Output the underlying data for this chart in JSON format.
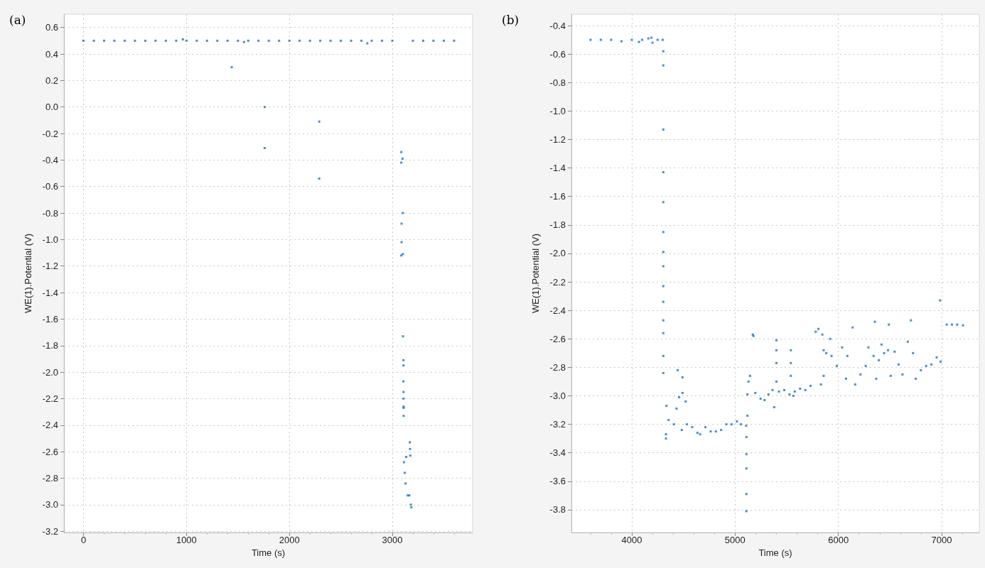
{
  "chart_data": [
    {
      "type": "scatter",
      "title": "(a)",
      "xlabel": "Time (s)",
      "ylabel": "WE(1).Potential (V)",
      "grid": true,
      "marker": "square",
      "xlim": [
        -190,
        3780
      ],
      "xticks": [
        0,
        1000,
        2000,
        3000
      ],
      "ylim": [
        -3.21,
        0.7
      ],
      "yticks": [
        0.6,
        0.4,
        0.2,
        {
          "value": 0,
          "label": "0.0"
        },
        -0.2,
        -0.4,
        -0.6,
        -0.8,
        {
          "value": -1,
          "label": "-1.0"
        },
        -1.2,
        -1.4,
        -1.6,
        -1.8,
        {
          "value": -2,
          "label": "-2.0"
        },
        -2.2,
        -2.4,
        -2.6,
        -2.8,
        {
          "value": -3,
          "label": "-3.0"
        },
        -3.2
      ],
      "series": [
        {
          "color": "#1a72c4",
          "x": [
            0,
            100,
            200,
            300,
            400,
            500,
            600,
            700,
            800,
            900,
            965,
            1000,
            1100,
            1200,
            1300,
            1400,
            1440,
            1500,
            1559,
            1600,
            1700,
            1760,
            1760,
            1800,
            1900,
            2000,
            2100,
            2200,
            2290,
            2290,
            2300,
            2400,
            2500,
            2600,
            2700,
            2757,
            2800,
            2900,
            3000,
            3087,
            3100,
            3087,
            3103,
            3090,
            3090,
            3087,
            3103,
            3103,
            3108,
            3108,
            3108,
            3109,
            3109,
            3110,
            3110,
            3110,
            3113,
            3121,
            3129,
            3135,
            3150,
            3165,
            3170,
            3172,
            3175,
            3180,
            3185,
            3200,
            3300,
            3400,
            3500,
            3600
          ],
          "values": [
            0.5,
            0.5,
            0.5,
            0.5,
            0.5,
            0.5,
            0.5,
            0.5,
            0.5,
            0.5,
            0.51,
            0.5,
            0.5,
            0.5,
            0.5,
            0.5,
            0.3,
            0.5,
            0.49,
            0.5,
            0.5,
            0.0,
            -0.31,
            0.5,
            0.5,
            0.5,
            0.5,
            0.5,
            -0.11,
            -0.54,
            0.5,
            0.5,
            0.5,
            0.5,
            0.5,
            0.48,
            0.5,
            0.5,
            0.5,
            -0.34,
            -0.39,
            -0.42,
            -0.8,
            -0.88,
            -1.02,
            -1.12,
            -1.11,
            -1.73,
            -1.91,
            -1.95,
            -2.07,
            -2.15,
            -2.2,
            -2.26,
            -2.27,
            -2.33,
            -2.68,
            -2.76,
            -2.84,
            -2.64,
            -2.93,
            -2.93,
            -2.53,
            -2.58,
            -2.63,
            -3.0,
            -3.02,
            0.5,
            0.5,
            0.5,
            0.5,
            0.5
          ]
        }
      ]
    },
    {
      "type": "scatter",
      "title": "(b)",
      "xlabel": "Time (s)",
      "ylabel": "WE(1).Potential (V)",
      "grid": true,
      "marker": "square",
      "xlim": [
        3415,
        7365
      ],
      "xticks": [
        4000,
        5000,
        6000,
        7000
      ],
      "ylim": [
        -3.96,
        -0.32
      ],
      "yticks": [
        -0.4,
        -0.6,
        -0.8,
        {
          "value": -1,
          "label": "-1.0"
        },
        -1.2,
        -1.4,
        -1.6,
        -1.8,
        {
          "value": -2,
          "label": "-2.0"
        },
        -2.2,
        -2.4,
        -2.6,
        -2.8,
        {
          "value": -3,
          "label": "-3.0"
        },
        -3.2,
        -3.4,
        -3.6,
        -3.8
      ],
      "series": [
        {
          "color": "#1a72c4",
          "x": [
            3600,
            3700,
            3800,
            3900,
            4000,
            4070,
            4100,
            4160,
            4190,
            4200,
            4250,
            4300,
            4305,
            4305,
            4305,
            4305,
            4305,
            4305,
            4305,
            4305,
            4305,
            4305,
            4305,
            4305,
            4305,
            4305,
            4331,
            4331,
            4336,
            4356,
            4407,
            4433,
            4445,
            4458,
            4484,
            4491,
            4491,
            4522,
            4534,
            4585,
            4636,
            4662,
            4713,
            4764,
            4814,
            4865,
            4916,
            4967,
            5018,
            5056,
            5107,
            5110,
            5110,
            5110,
            5110,
            5110,
            5120,
            5120,
            5130,
            5145,
            5171,
            5178,
            5196,
            5247,
            5285,
            5323,
            5362,
            5379,
            5400,
            5400,
            5400,
            5400,
            5425,
            5476,
            5527,
            5540,
            5540,
            5540,
            5565,
            5578,
            5629,
            5680,
            5731,
            5781,
            5807,
            5832,
            5845,
            5858,
            5858,
            5883,
            5921,
            5934,
            5985,
            6036,
            6074,
            6087,
            6138,
            6163,
            6214,
            6265,
            6291,
            6341,
            6354,
            6367,
            6392,
            6418,
            6443,
            6481,
            6489,
            6507,
            6545,
            6583,
            6621,
            6672,
            6703,
            6723,
            6749,
            6799,
            6850,
            6901,
            6952,
            6985,
            6990,
            7050,
            7100,
            7150,
            7207
          ],
          "values": [
            -0.5,
            -0.5,
            -0.5,
            -0.51,
            -0.5,
            -0.515,
            -0.5,
            -0.49,
            -0.485,
            -0.52,
            -0.5,
            -0.5,
            -0.58,
            -0.68,
            -1.13,
            -1.43,
            -1.64,
            -1.85,
            -1.99,
            -2.09,
            -2.23,
            -2.34,
            -2.47,
            -2.56,
            -2.72,
            -2.84,
            -3.27,
            -3.3,
            -3.07,
            -3.17,
            -3.2,
            -3.09,
            -2.82,
            -3.01,
            -3.24,
            -2.87,
            -2.98,
            -3.04,
            -3.2,
            -3.22,
            -3.26,
            -3.27,
            -3.22,
            -3.25,
            -3.25,
            -3.24,
            -3.2,
            -3.2,
            -3.18,
            -3.2,
            -3.21,
            -3.29,
            -3.41,
            -3.51,
            -3.69,
            -3.81,
            -3.14,
            -2.99,
            -2.9,
            -2.86,
            -2.57,
            -2.58,
            -2.98,
            -3.02,
            -3.03,
            -2.99,
            -2.96,
            -3.08,
            -2.61,
            -2.68,
            -2.77,
            -2.9,
            -2.97,
            -2.96,
            -2.99,
            -2.68,
            -2.77,
            -2.86,
            -3.0,
            -2.97,
            -2.95,
            -2.96,
            -2.93,
            -2.55,
            -2.53,
            -2.92,
            -2.57,
            -2.86,
            -2.68,
            -2.7,
            -2.6,
            -2.72,
            -2.79,
            -2.66,
            -2.88,
            -2.72,
            -2.52,
            -2.92,
            -2.85,
            -2.79,
            -2.66,
            -2.72,
            -2.48,
            -2.88,
            -2.75,
            -2.64,
            -2.7,
            -2.68,
            -2.5,
            -2.86,
            -2.69,
            -2.78,
            -2.85,
            -2.62,
            -2.47,
            -2.7,
            -2.88,
            -2.82,
            -2.79,
            -2.78,
            -2.73,
            -2.33,
            -2.76,
            -2.5,
            -2.5,
            -2.5,
            -2.505
          ]
        }
      ]
    }
  ]
}
